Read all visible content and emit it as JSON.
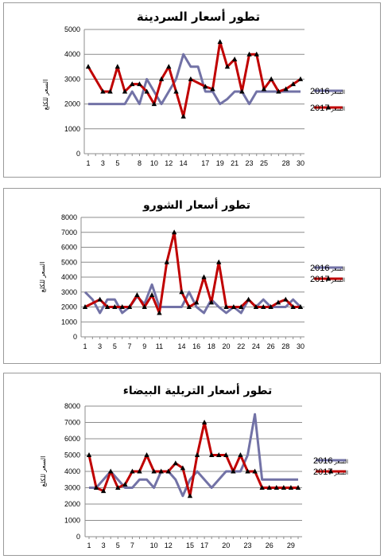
{
  "colors": {
    "series_2016": "#7272a6",
    "series_2017": "#c00000",
    "marker": "#000000"
  },
  "chart_data": [
    {
      "type": "line",
      "title": "تطور أسعار السردينة",
      "ylabel": "السعر للكلغ",
      "ylim": [
        0,
        5000
      ],
      "yticks": [
        0,
        1000,
        2000,
        3000,
        4000,
        5000
      ],
      "xlim": [
        1,
        30
      ],
      "xticks": [
        1,
        3,
        5,
        8,
        10,
        12,
        14,
        17,
        19,
        21,
        23,
        25,
        28,
        30
      ],
      "legend_position": "right",
      "series": [
        {
          "name": "2016 السعر",
          "x": [
            1,
            2,
            3,
            4,
            5,
            6,
            7,
            8,
            9,
            10,
            11,
            12,
            13,
            14,
            15,
            16,
            17,
            18,
            19,
            20,
            21,
            22,
            23,
            24,
            25,
            26,
            27,
            28,
            29,
            30
          ],
          "values": [
            2000,
            2000,
            2000,
            2000,
            2000,
            2000,
            2500,
            2000,
            3000,
            2500,
            2000,
            2500,
            3000,
            4000,
            3500,
            3500,
            2500,
            2500,
            2000,
            2200,
            2500,
            2500,
            2000,
            2500,
            2500,
            2500,
            2500,
            2500,
            2500,
            2500
          ]
        },
        {
          "name": "2017 السعر",
          "x": [
            1,
            3,
            4,
            5,
            6,
            7,
            8,
            9,
            10,
            11,
            12,
            13,
            14,
            15,
            17,
            18,
            19,
            20,
            21,
            22,
            23,
            24,
            25,
            26,
            27,
            28,
            29,
            30
          ],
          "values": [
            3500,
            2500,
            2500,
            3500,
            2500,
            2800,
            2800,
            2500,
            2000,
            3000,
            3500,
            2500,
            1500,
            3000,
            2700,
            2600,
            4500,
            3500,
            3800,
            2500,
            4000,
            4000,
            2600,
            3000,
            2500,
            2600,
            2800,
            3000
          ]
        }
      ]
    },
    {
      "type": "line",
      "title": "تطور أسعار الشورو",
      "ylabel": "السعر للكلغ",
      "ylim": [
        0,
        8000
      ],
      "yticks": [
        0,
        1000,
        2000,
        3000,
        4000,
        5000,
        6000,
        7000,
        8000
      ],
      "xlim": [
        1,
        30
      ],
      "xticks": [
        1,
        3,
        5,
        7,
        9,
        11,
        14,
        16,
        18,
        20,
        22,
        24,
        26,
        28,
        30
      ],
      "legend_position": "right",
      "series": [
        {
          "name": "2016 السعر",
          "x": [
            1,
            2,
            3,
            4,
            5,
            6,
            7,
            8,
            9,
            10,
            11,
            12,
            13,
            14,
            15,
            16,
            17,
            18,
            19,
            20,
            21,
            22,
            23,
            24,
            25,
            26,
            27,
            28,
            29,
            30
          ],
          "values": [
            3000,
            2500,
            1600,
            2500,
            2500,
            1600,
            2000,
            2700,
            2200,
            3500,
            2000,
            2000,
            2000,
            2000,
            3000,
            2000,
            1600,
            2500,
            2000,
            1600,
            2000,
            1600,
            2500,
            2000,
            2500,
            2000,
            2000,
            2000,
            2500,
            2000
          ]
        },
        {
          "name": "2017 السعر",
          "x": [
            1,
            3,
            4,
            5,
            6,
            7,
            8,
            9,
            10,
            11,
            12,
            13,
            14,
            15,
            16,
            17,
            18,
            19,
            20,
            21,
            22,
            23,
            24,
            25,
            26,
            27,
            28,
            29,
            30
          ],
          "values": [
            2000,
            2500,
            2000,
            2000,
            2000,
            2000,
            2800,
            2000,
            2800,
            1600,
            5000,
            7000,
            3000,
            2000,
            2300,
            4000,
            2300,
            5000,
            2000,
            2000,
            2000,
            2500,
            2000,
            2000,
            2000,
            2300,
            2500,
            2000,
            2000
          ]
        }
      ]
    },
    {
      "type": "line",
      "title": "تطور أسعار التريلية البيضاء",
      "ylabel": "السعر للكلغ",
      "ylim": [
        0,
        8000
      ],
      "yticks": [
        0,
        1000,
        2000,
        3000,
        4000,
        5000,
        6000,
        7000,
        8000
      ],
      "xlim": [
        1,
        30
      ],
      "xticks": [
        1,
        3,
        5,
        7,
        10,
        12,
        15,
        17,
        20,
        23,
        26,
        29
      ],
      "legend_position": "right",
      "series": [
        {
          "name": "2016 السعر",
          "x": [
            1,
            2,
            3,
            4,
            5,
            6,
            7,
            8,
            9,
            10,
            11,
            12,
            13,
            14,
            15,
            16,
            17,
            18,
            19,
            20,
            21,
            22,
            23,
            24,
            25,
            26,
            27,
            28,
            29,
            30
          ],
          "values": [
            3000,
            3000,
            3500,
            4000,
            3500,
            3000,
            3000,
            3500,
            3500,
            3000,
            4000,
            4000,
            3500,
            2500,
            3500,
            4000,
            3500,
            3000,
            3500,
            4000,
            4000,
            4000,
            5000,
            7500,
            3500,
            3500,
            3500,
            3500,
            3500,
            3500
          ]
        },
        {
          "name": "2017 السعر",
          "x": [
            1,
            2,
            3,
            4,
            5,
            6,
            7,
            8,
            9,
            10,
            11,
            12,
            13,
            14,
            15,
            16,
            17,
            18,
            19,
            20,
            21,
            22,
            23,
            24,
            25,
            26,
            27,
            28,
            29,
            30
          ],
          "values": [
            5000,
            3000,
            2800,
            4000,
            3000,
            3200,
            4000,
            4000,
            5000,
            4000,
            4000,
            4000,
            4500,
            4200,
            2500,
            5000,
            7000,
            5000,
            5000,
            5000,
            4000,
            5000,
            4000,
            4000,
            3000,
            3000,
            3000,
            3000,
            3000,
            3000
          ]
        }
      ]
    }
  ]
}
